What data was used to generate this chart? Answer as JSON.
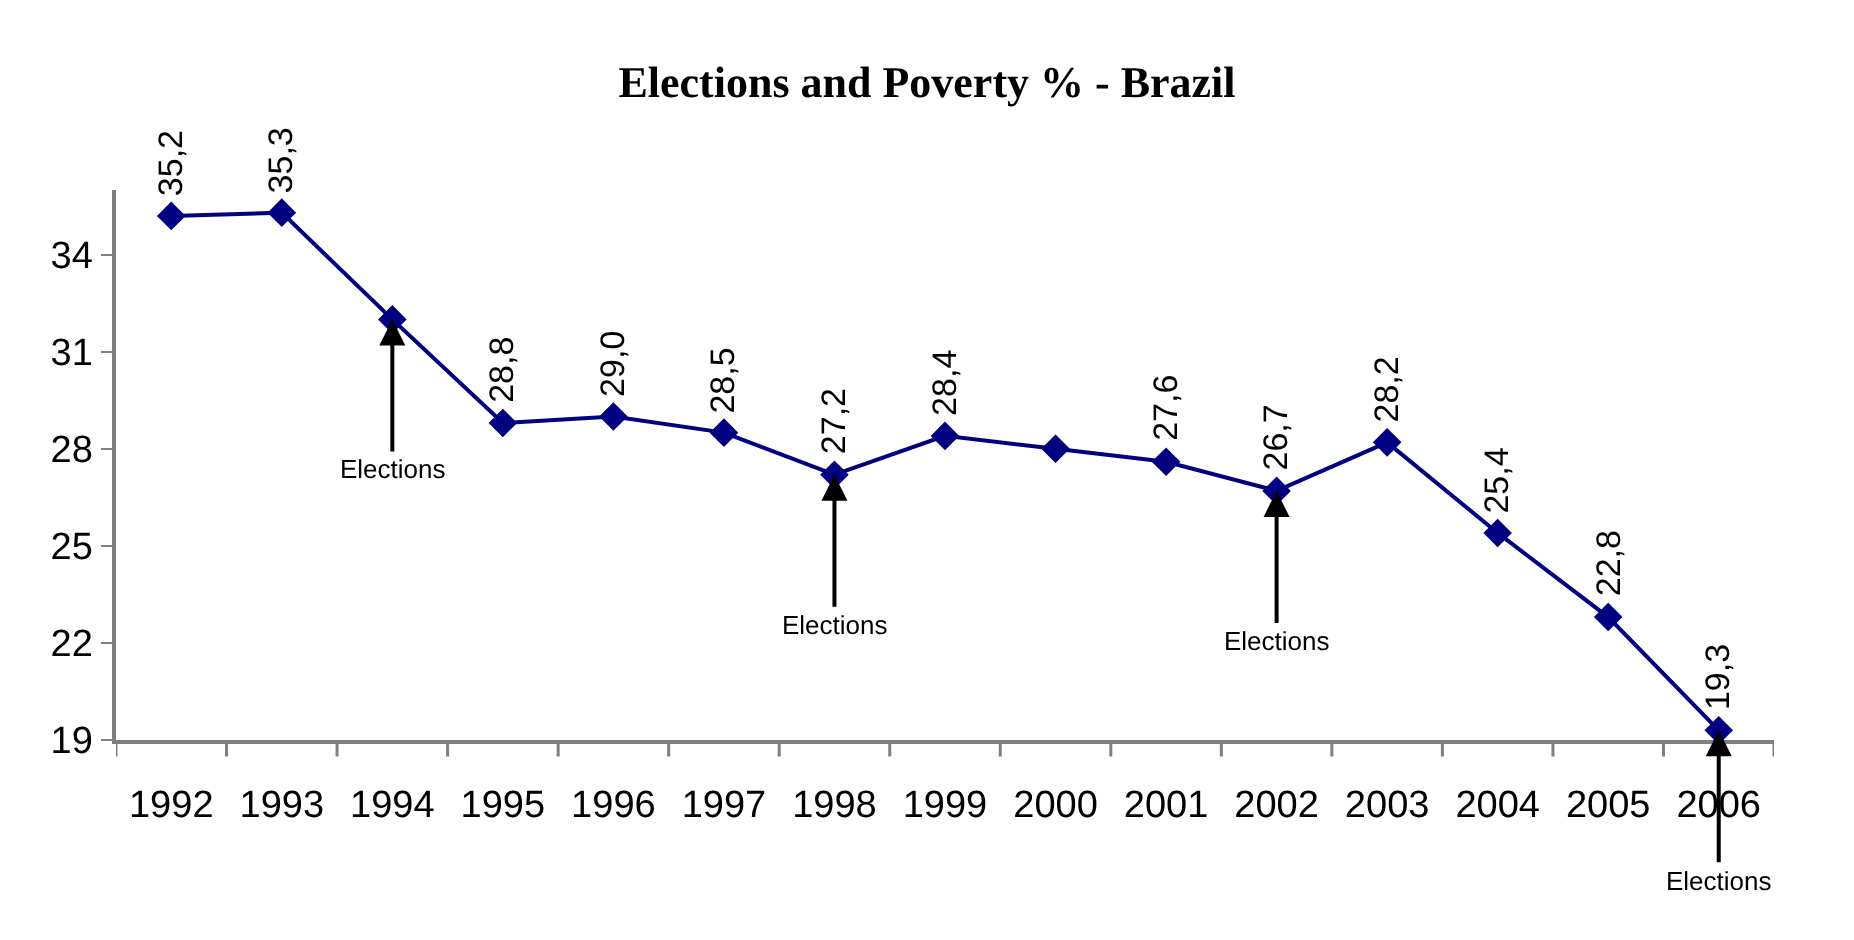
{
  "chart_data": {
    "type": "line",
    "title": "Elections and Poverty % - Brazil",
    "categories": [
      "1992",
      "1993",
      "1994",
      "1995",
      "1996",
      "1997",
      "1998",
      "1999",
      "2000",
      "2001",
      "2002",
      "2003",
      "2004",
      "2005",
      "2006"
    ],
    "series": [
      {
        "color": "#000080",
        "values": [
          35.2,
          35.3,
          32.0,
          28.8,
          29.0,
          28.5,
          27.2,
          28.4,
          28.0,
          27.6,
          26.7,
          28.2,
          25.4,
          22.8,
          19.3
        ],
        "value_labels": [
          "35,2",
          "35,3",
          null,
          "28,8",
          "29,0",
          "28,5",
          "27,2",
          "28,4",
          null,
          "27,6",
          "26,7",
          "28,2",
          "25,4",
          "22,8",
          "19,3"
        ]
      }
    ],
    "ylim": [
      19,
      36
    ],
    "yticks": [
      19,
      22,
      25,
      28,
      31,
      34
    ],
    "grid": false,
    "legend": false,
    "marker": "diamond",
    "line_style": "solid",
    "annotations": [
      {
        "text": "Elections",
        "x": "1994",
        "y": 32.0
      },
      {
        "text": "Elections",
        "x": "1998",
        "y": 27.2
      },
      {
        "text": "Elections",
        "x": "2002",
        "y": 26.7
      },
      {
        "text": "Elections",
        "x": "2006",
        "y": 19.3
      }
    ]
  }
}
